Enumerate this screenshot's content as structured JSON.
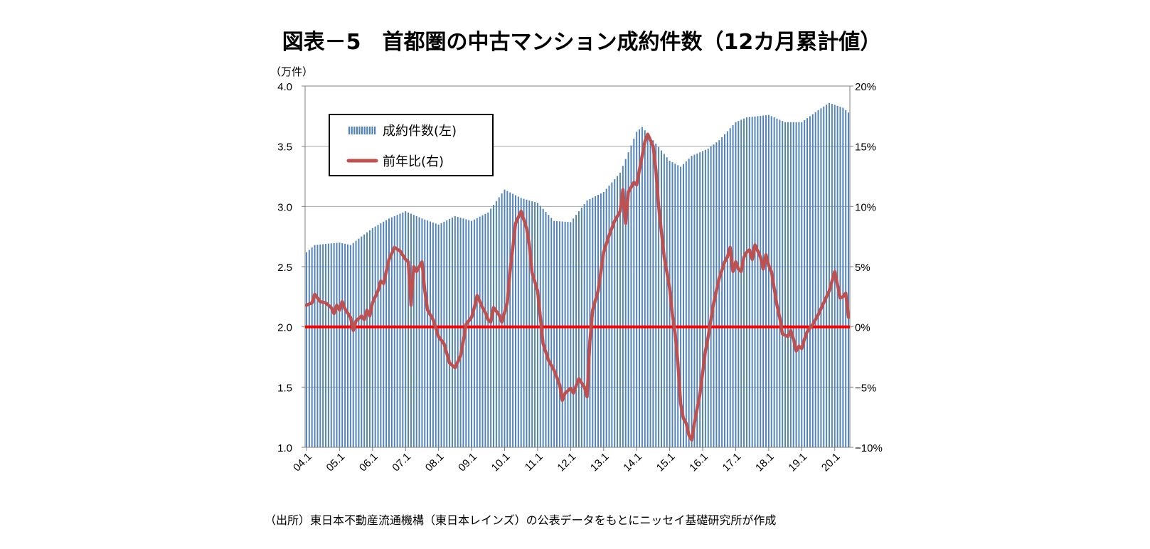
{
  "chart_data": {
    "type": "bar",
    "title": "図表－5　首都圏の中古マンション成約件数（12カ月累計値）",
    "left_unit": "（万件）",
    "source": "（出所）東日本不動産流通機構（東日本レインズ）の公表データをもとにニッセイ基礎研究所が作成",
    "x_tick_labels": [
      "04.1",
      "05.1",
      "06.1",
      "07.1",
      "08.1",
      "09.1",
      "10.1",
      "11.1",
      "12.1",
      "13.1",
      "14.1",
      "15.1",
      "16.1",
      "17.1",
      "18.1",
      "19.1",
      "20.1"
    ],
    "y_left": {
      "range": [
        1.0,
        4.0
      ],
      "ticks": [
        "1.0",
        "1.5",
        "2.0",
        "2.5",
        "3.0",
        "3.5",
        "4.0"
      ]
    },
    "y_right": {
      "range": [
        -10,
        20
      ],
      "ticks": [
        "−10%",
        "−5%",
        "0%",
        "5%",
        "10%",
        "15%",
        "20%"
      ]
    },
    "legend": {
      "position": "top-left",
      "bar_label": "成約件数(左)",
      "line_label": "前年比(右)"
    },
    "grid": true,
    "zero_line_value": 0,
    "colors": {
      "bar": "#4F81BD",
      "line": "#C0504D",
      "zero_line": "#FF0000",
      "grid": "#A6A6A6"
    },
    "series": [
      {
        "name": "成約件数(左)",
        "axis": "left",
        "anchors": [
          [
            0,
            2.62
          ],
          [
            3,
            2.68
          ],
          [
            12,
            2.7
          ],
          [
            16,
            2.68
          ],
          [
            24,
            2.82
          ],
          [
            30,
            2.9
          ],
          [
            36,
            2.96
          ],
          [
            42,
            2.9
          ],
          [
            48,
            2.85
          ],
          [
            54,
            2.92
          ],
          [
            60,
            2.88
          ],
          [
            66,
            2.95
          ],
          [
            72,
            3.14
          ],
          [
            78,
            3.07
          ],
          [
            84,
            3.03
          ],
          [
            90,
            2.88
          ],
          [
            96,
            2.87
          ],
          [
            102,
            3.05
          ],
          [
            108,
            3.12
          ],
          [
            114,
            3.28
          ],
          [
            120,
            3.62
          ],
          [
            122,
            3.66
          ],
          [
            126,
            3.55
          ],
          [
            132,
            3.38
          ],
          [
            136,
            3.33
          ],
          [
            140,
            3.42
          ],
          [
            146,
            3.48
          ],
          [
            150,
            3.55
          ],
          [
            156,
            3.7
          ],
          [
            160,
            3.74
          ],
          [
            168,
            3.76
          ],
          [
            174,
            3.7
          ],
          [
            180,
            3.7
          ],
          [
            186,
            3.8
          ],
          [
            190,
            3.86
          ],
          [
            195,
            3.82
          ],
          [
            197,
            3.78
          ]
        ]
      },
      {
        "name": "前年比(右)",
        "axis": "right",
        "points": [
          [
            0,
            1.8
          ],
          [
            2,
            2
          ],
          [
            3,
            2.7
          ],
          [
            5,
            2.1
          ],
          [
            7,
            2
          ],
          [
            9,
            1.6
          ],
          [
            10,
            1.1
          ],
          [
            11,
            1.8
          ],
          [
            12,
            1.4
          ],
          [
            13,
            2.1
          ],
          [
            14,
            1.5
          ],
          [
            16,
            0.8
          ],
          [
            17,
            -0.3
          ],
          [
            18,
            0.5
          ],
          [
            20,
            0.9
          ],
          [
            21,
            0.6
          ],
          [
            22,
            1.4
          ],
          [
            23,
            0.9
          ],
          [
            24,
            2
          ],
          [
            26,
            3
          ],
          [
            27,
            3.8
          ],
          [
            28,
            3.6
          ],
          [
            30,
            5.6
          ],
          [
            32,
            6.6
          ],
          [
            34,
            6.3
          ],
          [
            36,
            5.6
          ],
          [
            37,
            5.4
          ],
          [
            38,
            1.8
          ],
          [
            39,
            5
          ],
          [
            40,
            4.6
          ],
          [
            42,
            5.4
          ],
          [
            43,
            3
          ],
          [
            44,
            1.4
          ],
          [
            46,
            0.6
          ],
          [
            48,
            -0.8
          ],
          [
            50,
            -1.4
          ],
          [
            52,
            -3
          ],
          [
            54,
            -3.4
          ],
          [
            56,
            -2.4
          ],
          [
            57,
            -1.2
          ],
          [
            58,
            0.2
          ],
          [
            60,
            0.8
          ],
          [
            61,
            1.6
          ],
          [
            62,
            2.6
          ],
          [
            64,
            1.6
          ],
          [
            65,
            1.2
          ],
          [
            66,
            0.6
          ],
          [
            67,
            0.4
          ],
          [
            68,
            1.6
          ],
          [
            70,
            1
          ],
          [
            71,
            0.4
          ],
          [
            72,
            1.2
          ],
          [
            73,
            2
          ],
          [
            74,
            4.6
          ],
          [
            76,
            8.6
          ],
          [
            78,
            9.6
          ],
          [
            80,
            8.2
          ],
          [
            81,
            6.8
          ],
          [
            82,
            4.5
          ],
          [
            84,
            3
          ],
          [
            85,
            0.8
          ],
          [
            86,
            -1.4
          ],
          [
            88,
            -2.8
          ],
          [
            90,
            -3.6
          ],
          [
            92,
            -4.8
          ],
          [
            93,
            -6.1
          ],
          [
            94,
            -5.5
          ],
          [
            96,
            -5.1
          ],
          [
            97,
            -5.5
          ],
          [
            99,
            -4.3
          ],
          [
            101,
            -5
          ],
          [
            102,
            -5.8
          ],
          [
            103,
            -1.2
          ],
          [
            104,
            1.4
          ],
          [
            106,
            3
          ],
          [
            108,
            6.2
          ],
          [
            110,
            7.6
          ],
          [
            112,
            8.8
          ],
          [
            114,
            9.6
          ],
          [
            115,
            11.4
          ],
          [
            116,
            8.6
          ],
          [
            117,
            11.2
          ],
          [
            119,
            12
          ],
          [
            120,
            11.8
          ],
          [
            121,
            13
          ],
          [
            123,
            15.4
          ],
          [
            124,
            16
          ],
          [
            126,
            15
          ],
          [
            127,
            13
          ],
          [
            128,
            10
          ],
          [
            130,
            5.8
          ],
          [
            132,
            3.2
          ],
          [
            133,
            1
          ],
          [
            134,
            -0.5
          ],
          [
            135,
            -3
          ],
          [
            136,
            -6.4
          ],
          [
            137,
            -7.6
          ],
          [
            138,
            -8
          ],
          [
            139,
            -9
          ],
          [
            140,
            -9.4
          ],
          [
            141,
            -8
          ],
          [
            143,
            -5.6
          ],
          [
            144,
            -3.8
          ],
          [
            145,
            -2
          ],
          [
            146,
            -0.8
          ],
          [
            147,
            0.6
          ],
          [
            148,
            2
          ],
          [
            150,
            4
          ],
          [
            152,
            5.4
          ],
          [
            153,
            5.8
          ],
          [
            154,
            6.6
          ],
          [
            155,
            4.6
          ],
          [
            156,
            5.4
          ],
          [
            157,
            4.8
          ],
          [
            158,
            4.6
          ],
          [
            159,
            5.8
          ],
          [
            160,
            6.2
          ],
          [
            161,
            6.4
          ],
          [
            162,
            5.6
          ],
          [
            163,
            6.8
          ],
          [
            165,
            5.8
          ],
          [
            166,
            4.8
          ],
          [
            167,
            6
          ],
          [
            168,
            5.1
          ],
          [
            169,
            4.6
          ],
          [
            170,
            3.2
          ],
          [
            171,
            1.8
          ],
          [
            172,
            0.8
          ],
          [
            173,
            -0.6
          ],
          [
            175,
            -0.8
          ],
          [
            176,
            -0.3
          ],
          [
            177,
            -1
          ],
          [
            178,
            -2
          ],
          [
            179,
            -1.6
          ],
          [
            180,
            -1.8
          ],
          [
            181,
            -1
          ],
          [
            182,
            -0.4
          ],
          [
            184,
            0.2
          ],
          [
            186,
            1
          ],
          [
            188,
            2
          ],
          [
            190,
            3
          ],
          [
            192,
            4.6
          ],
          [
            193,
            3.5
          ],
          [
            194,
            2.4
          ],
          [
            195,
            2.5
          ],
          [
            196,
            2.8
          ],
          [
            197,
            0.8
          ]
        ]
      }
    ]
  }
}
